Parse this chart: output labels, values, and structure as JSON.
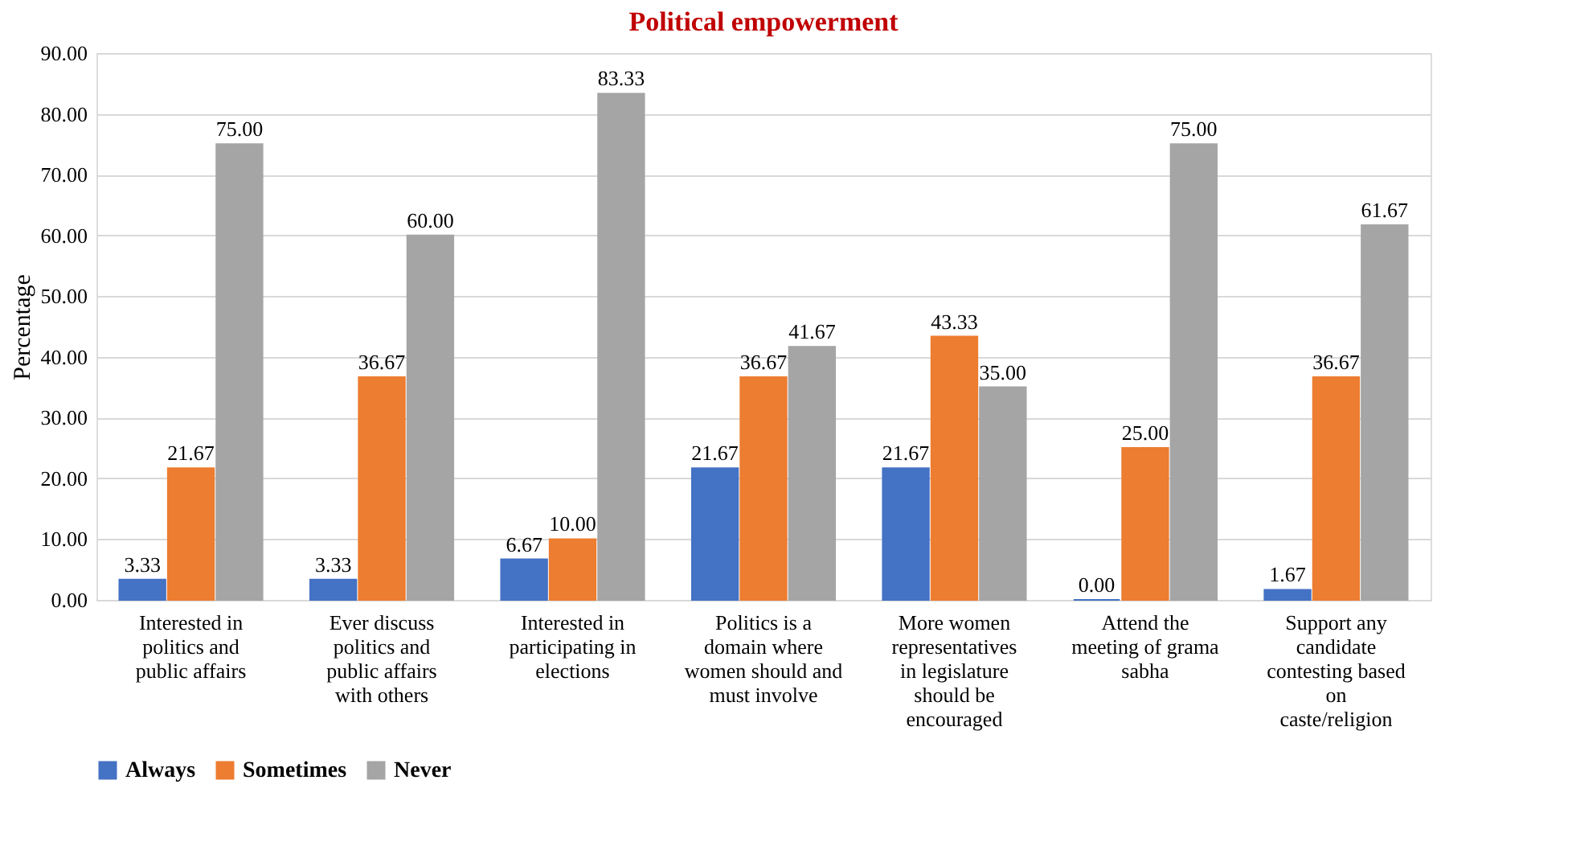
{
  "chart_data": {
    "type": "bar",
    "title": "Political empowerment",
    "ylabel": "Percentage",
    "categories": [
      "Interested in politics and public affairs",
      "Ever discuss politics and public affairs with others",
      "Interested in participating in elections",
      "Politics is a domain where women should and must involve",
      "More women representatives in legislature should be encouraged",
      "Attend the meeting of grama sabha",
      "Support any candidate contesting based on caste/religion"
    ],
    "series": [
      {
        "name": "Always",
        "color": "#4472c4",
        "values": [
          3.33,
          3.33,
          6.67,
          21.67,
          21.67,
          0.0,
          1.67
        ],
        "value_labels": [
          "3.33",
          "3.33",
          "6.67",
          "21.67",
          "21.67",
          "0.00",
          "1.67"
        ]
      },
      {
        "name": "Sometimes",
        "color": "#ed7d31",
        "values": [
          21.67,
          36.67,
          10.0,
          36.67,
          43.33,
          25.0,
          36.67
        ],
        "value_labels": [
          "21.67",
          "36.67",
          "10.00",
          "36.67",
          "43.33",
          "25.00",
          "36.67"
        ]
      },
      {
        "name": "Never",
        "color": "#a5a5a5",
        "values": [
          75.0,
          60.0,
          83.33,
          41.67,
          35.0,
          75.0,
          61.67
        ],
        "value_labels": [
          "75.00",
          "60.00",
          "83.33",
          "41.67",
          "35.00",
          "75.00",
          "61.67"
        ]
      }
    ],
    "ylim": [
      0,
      90
    ],
    "yticks": [
      {
        "value": 0,
        "label": "0.00"
      },
      {
        "value": 10,
        "label": "10.00"
      },
      {
        "value": 20,
        "label": "20.00"
      },
      {
        "value": 30,
        "label": "30.00"
      },
      {
        "value": 40,
        "label": "40.00"
      },
      {
        "value": 50,
        "label": "50.00"
      },
      {
        "value": 60,
        "label": "60.00"
      },
      {
        "value": 70,
        "label": "70.00"
      },
      {
        "value": 80,
        "label": "80.00"
      },
      {
        "value": 90,
        "label": "90.00"
      }
    ],
    "grid": "y",
    "legend": "bottom"
  }
}
